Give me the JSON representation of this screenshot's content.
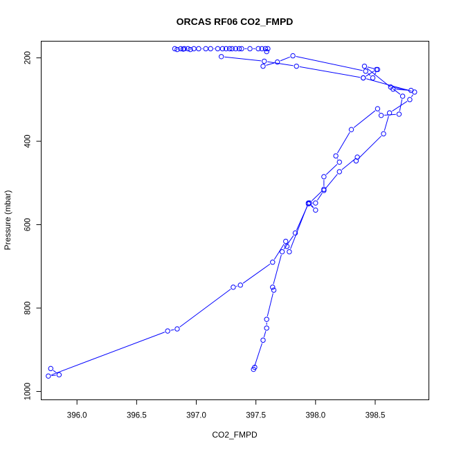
{
  "chart_data": {
    "type": "line",
    "title": "ORCAS RF06 CO2_FMPD",
    "xlabel": "CO2_FMPD",
    "ylabel": "Pressure (mbar)",
    "xlim": [
      395.7,
      398.95
    ],
    "ylim": [
      1020,
      160
    ],
    "y_reversed": true,
    "grid": false,
    "legend": "none",
    "color": "#0000ff",
    "xticks": [
      396.0,
      396.5,
      397.0,
      397.5,
      398.0,
      398.5
    ],
    "xtick_labels": [
      "396.0",
      "396.5",
      "397.0",
      "397.5",
      "398.0",
      "398.5"
    ],
    "yticks": [
      200,
      400,
      600,
      800,
      1000
    ],
    "ytick_labels": [
      "200",
      "400",
      "600",
      "800",
      "1000"
    ],
    "series": [
      {
        "x": [
          395.78,
          395.85,
          395.76,
          396.76,
          396.84,
          397.31,
          397.37,
          397.64,
          397.75,
          397.76,
          397.78,
          397.94,
          398.0,
          397.95,
          398.07,
          398.07,
          398.2,
          398.17,
          398.3,
          398.52,
          398.55,
          398.7,
          398.73,
          398.63,
          398.8,
          398.65,
          398.41,
          398.52,
          398.48,
          398.42,
          397.81,
          397.68,
          397.56
        ],
        "y": [
          945,
          960,
          963,
          855,
          850,
          750,
          745,
          690,
          640,
          652,
          665,
          548,
          565,
          548,
          515,
          485,
          450,
          435,
          372,
          322,
          338,
          335,
          292,
          270,
          278,
          275,
          220,
          228,
          248,
          232,
          195,
          210,
          220
        ]
      },
      {
        "x": [
          397.49,
          397.48,
          397.56,
          397.59,
          397.59,
          397.65,
          397.64,
          397.72,
          397.83,
          397.94,
          398.0,
          398.07,
          398.2,
          398.35,
          398.34,
          398.57,
          398.62,
          398.79,
          398.83,
          398.4
        ],
        "y": [
          942,
          947,
          877,
          848,
          827,
          757,
          750,
          665,
          620,
          550,
          548,
          518,
          473,
          438,
          447,
          382,
          332,
          300,
          282,
          248
        ]
      },
      {
        "x": [
          397.21,
          397.57,
          397.84,
          398.4,
          398.51
        ],
        "y": [
          197,
          208,
          220,
          248,
          228
        ]
      },
      {
        "x": [
          396.82,
          396.84,
          396.87,
          396.89,
          396.9,
          396.93,
          396.95,
          396.98,
          397.02,
          397.08,
          397.12,
          397.18,
          397.22,
          397.25,
          397.28,
          397.3,
          397.33,
          397.36,
          397.38,
          397.45,
          397.52,
          397.55,
          397.58,
          397.6,
          397.59
        ],
        "y": [
          178,
          180,
          178,
          179,
          178,
          178,
          180,
          178,
          178,
          178,
          178,
          178,
          178,
          178,
          178,
          178,
          178,
          178,
          178,
          178,
          178,
          178,
          178,
          178,
          185
        ]
      }
    ]
  }
}
